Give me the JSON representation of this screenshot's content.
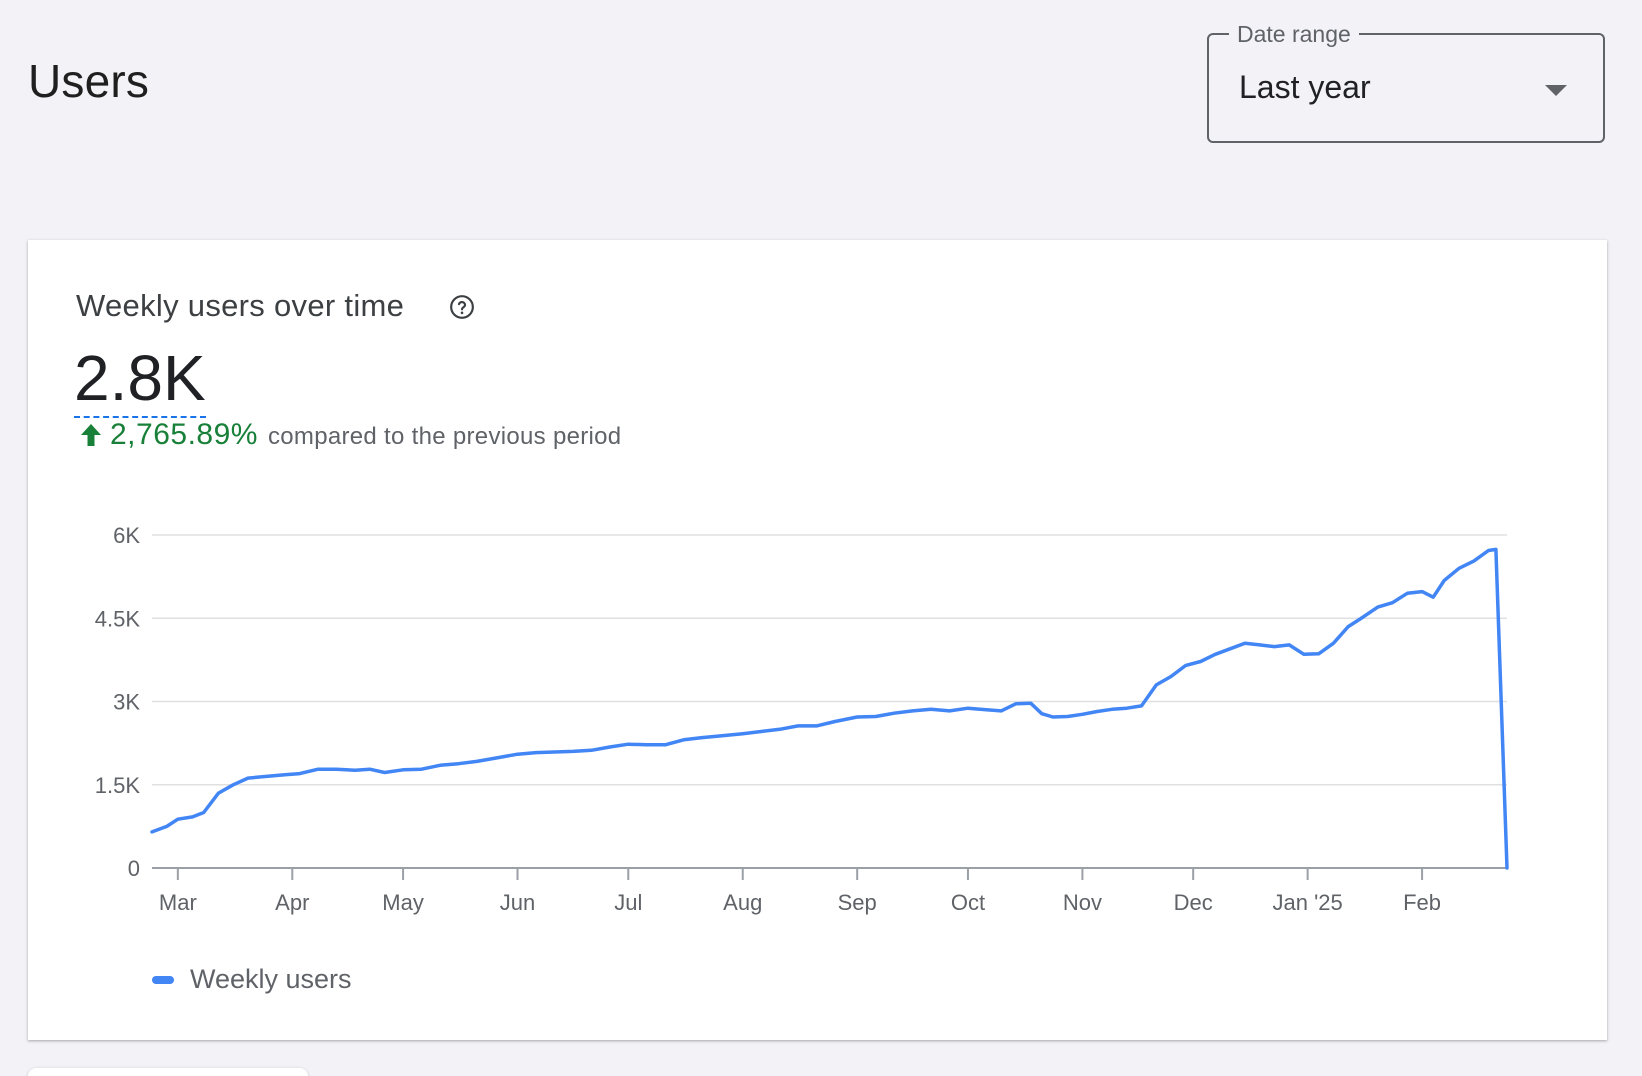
{
  "page": {
    "title": "Users"
  },
  "date_range": {
    "label": "Date range",
    "value": "Last year"
  },
  "card": {
    "title": "Weekly users over time",
    "value": "2.8K",
    "delta_value": "2,765.89%",
    "delta_text": "compared to the previous period",
    "legend_label": "Weekly users"
  },
  "colors": {
    "line": "#4285f4",
    "positive": "#188038",
    "grid": "#e0e0e0"
  },
  "chart_data": {
    "type": "line",
    "title": "Weekly users over time",
    "y_ticks": [
      {
        "v": 0,
        "label": "0"
      },
      {
        "v": 1500,
        "label": "1.5K"
      },
      {
        "v": 3000,
        "label": "3K"
      },
      {
        "v": 4500,
        "label": "4.5K"
      },
      {
        "v": 6000,
        "label": "6K"
      }
    ],
    "ylim": [
      0,
      6000
    ],
    "xlim": [
      "2024-02-23",
      "2025-02-24"
    ],
    "x_ticks": [
      {
        "date": "2024-03-01",
        "label": "Mar"
      },
      {
        "date": "2024-04-01",
        "label": "Apr"
      },
      {
        "date": "2024-05-01",
        "label": "May"
      },
      {
        "date": "2024-06-01",
        "label": "Jun"
      },
      {
        "date": "2024-07-01",
        "label": "Jul"
      },
      {
        "date": "2024-08-01",
        "label": "Aug"
      },
      {
        "date": "2024-09-01",
        "label": "Sep"
      },
      {
        "date": "2024-10-01",
        "label": "Oct"
      },
      {
        "date": "2024-11-01",
        "label": "Nov"
      },
      {
        "date": "2024-12-01",
        "label": "Dec"
      },
      {
        "date": "2025-01-01",
        "label": "Jan '25"
      },
      {
        "date": "2025-02-01",
        "label": "Feb"
      }
    ],
    "grid": true,
    "legend_position": "bottom-left",
    "series": [
      {
        "name": "Weekly users",
        "points": [
          [
            "2024-02-23",
            650
          ],
          [
            "2024-02-27",
            750
          ],
          [
            "2024-03-01",
            880
          ],
          [
            "2024-03-05",
            920
          ],
          [
            "2024-03-08",
            1000
          ],
          [
            "2024-03-12",
            1350
          ],
          [
            "2024-03-16",
            1500
          ],
          [
            "2024-03-20",
            1620
          ],
          [
            "2024-03-25",
            1650
          ],
          [
            "2024-03-30",
            1680
          ],
          [
            "2024-04-03",
            1700
          ],
          [
            "2024-04-08",
            1780
          ],
          [
            "2024-04-13",
            1780
          ],
          [
            "2024-04-18",
            1760
          ],
          [
            "2024-04-22",
            1780
          ],
          [
            "2024-04-26",
            1720
          ],
          [
            "2024-05-01",
            1770
          ],
          [
            "2024-05-06",
            1780
          ],
          [
            "2024-05-11",
            1850
          ],
          [
            "2024-05-16",
            1880
          ],
          [
            "2024-05-21",
            1920
          ],
          [
            "2024-05-26",
            1980
          ],
          [
            "2024-06-01",
            2050
          ],
          [
            "2024-06-06",
            2080
          ],
          [
            "2024-06-11",
            2090
          ],
          [
            "2024-06-16",
            2100
          ],
          [
            "2024-06-21",
            2120
          ],
          [
            "2024-06-26",
            2180
          ],
          [
            "2024-07-01",
            2230
          ],
          [
            "2024-07-06",
            2220
          ],
          [
            "2024-07-11",
            2220
          ],
          [
            "2024-07-16",
            2310
          ],
          [
            "2024-07-21",
            2350
          ],
          [
            "2024-07-26",
            2380
          ],
          [
            "2024-08-01",
            2420
          ],
          [
            "2024-08-06",
            2460
          ],
          [
            "2024-08-11",
            2500
          ],
          [
            "2024-08-16",
            2560
          ],
          [
            "2024-08-21",
            2560
          ],
          [
            "2024-08-26",
            2640
          ],
          [
            "2024-09-01",
            2720
          ],
          [
            "2024-09-06",
            2730
          ],
          [
            "2024-09-11",
            2790
          ],
          [
            "2024-09-16",
            2830
          ],
          [
            "2024-09-21",
            2860
          ],
          [
            "2024-09-26",
            2830
          ],
          [
            "2024-10-01",
            2880
          ],
          [
            "2024-10-06",
            2850
          ],
          [
            "2024-10-10",
            2830
          ],
          [
            "2024-10-14",
            2960
          ],
          [
            "2024-10-18",
            2970
          ],
          [
            "2024-10-21",
            2780
          ],
          [
            "2024-10-24",
            2720
          ],
          [
            "2024-10-28",
            2730
          ],
          [
            "2024-11-01",
            2770
          ],
          [
            "2024-11-05",
            2820
          ],
          [
            "2024-11-09",
            2860
          ],
          [
            "2024-11-13",
            2880
          ],
          [
            "2024-11-17",
            2920
          ],
          [
            "2024-11-21",
            3300
          ],
          [
            "2024-11-25",
            3450
          ],
          [
            "2024-11-29",
            3650
          ],
          [
            "2024-12-03",
            3720
          ],
          [
            "2024-12-07",
            3850
          ],
          [
            "2024-12-11",
            3950
          ],
          [
            "2024-12-15",
            4050
          ],
          [
            "2024-12-19",
            4020
          ],
          [
            "2024-12-23",
            3990
          ],
          [
            "2024-12-27",
            4020
          ],
          [
            "2024-12-31",
            3850
          ],
          [
            "2025-01-04",
            3860
          ],
          [
            "2025-01-08",
            4050
          ],
          [
            "2025-01-12",
            4350
          ],
          [
            "2025-01-16",
            4520
          ],
          [
            "2025-01-20",
            4700
          ],
          [
            "2025-01-24",
            4780
          ],
          [
            "2025-01-28",
            4950
          ],
          [
            "2025-02-01",
            4980
          ],
          [
            "2025-02-04",
            4880
          ],
          [
            "2025-02-07",
            5180
          ],
          [
            "2025-02-11",
            5400
          ],
          [
            "2025-02-15",
            5530
          ],
          [
            "2025-02-19",
            5720
          ],
          [
            "2025-02-21",
            5740
          ],
          [
            "2025-02-24",
            0
          ]
        ]
      }
    ]
  }
}
